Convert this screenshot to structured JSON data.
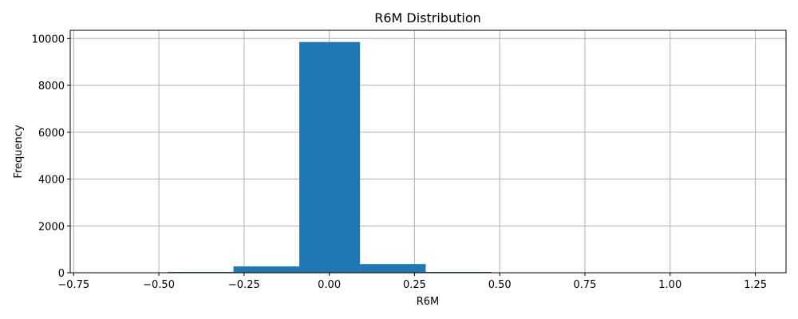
{
  "chart_data": {
    "type": "bar",
    "title": "R6M Distribution",
    "xlabel": "R6M",
    "ylabel": "Frequency",
    "xlim": [
      -0.76,
      1.34
    ],
    "ylim": [
      0,
      10350
    ],
    "grid": true,
    "bar_color": "#1f77b4",
    "bin_width": 0.193,
    "bins": [
      {
        "x0": -0.667,
        "x1": -0.474,
        "count": 3
      },
      {
        "x0": -0.474,
        "x1": -0.281,
        "count": 35
      },
      {
        "x0": -0.281,
        "x1": -0.088,
        "count": 270
      },
      {
        "x0": -0.088,
        "x1": 0.09,
        "count": 9850
      },
      {
        "x0": 0.09,
        "x1": 0.283,
        "count": 370
      },
      {
        "x0": 0.283,
        "x1": 0.476,
        "count": 35
      },
      {
        "x0": 0.476,
        "x1": 0.669,
        "count": 5
      },
      {
        "x0": 0.669,
        "x1": 0.862,
        "count": 2
      },
      {
        "x0": 0.862,
        "x1": 1.055,
        "count": 1
      },
      {
        "x0": 1.055,
        "x1": 1.248,
        "count": 1
      }
    ],
    "x_ticks": [
      {
        "value": -0.75,
        "label": "−0.75"
      },
      {
        "value": -0.5,
        "label": "−0.50"
      },
      {
        "value": -0.25,
        "label": "−0.25"
      },
      {
        "value": 0.0,
        "label": "0.00"
      },
      {
        "value": 0.25,
        "label": "0.25"
      },
      {
        "value": 0.5,
        "label": "0.50"
      },
      {
        "value": 0.75,
        "label": "0.75"
      },
      {
        "value": 1.0,
        "label": "1.00"
      },
      {
        "value": 1.25,
        "label": "1.25"
      }
    ],
    "y_ticks": [
      {
        "value": 0,
        "label": "0"
      },
      {
        "value": 2000,
        "label": "2000"
      },
      {
        "value": 4000,
        "label": "4000"
      },
      {
        "value": 6000,
        "label": "6000"
      },
      {
        "value": 8000,
        "label": "8000"
      },
      {
        "value": 10000,
        "label": "10000"
      }
    ]
  }
}
